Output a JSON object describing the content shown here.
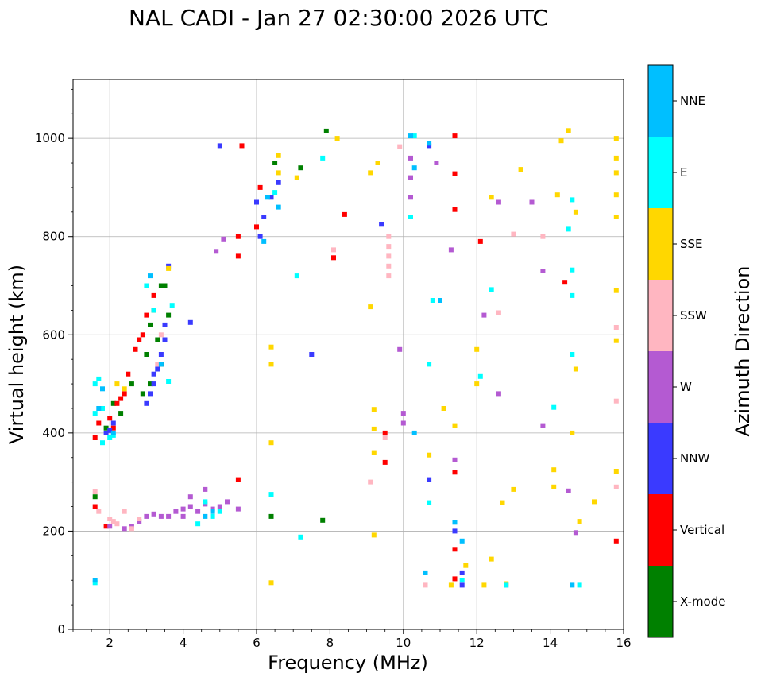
{
  "chart_data": {
    "type": "scatter",
    "title": "NAL CADI - Jan 27 02:30:00 2026 UTC",
    "xlabel": "Frequency (MHz)",
    "ylabel": "Virtual height (km)",
    "xlim": [
      1,
      16
    ],
    "ylim": [
      0,
      1120
    ],
    "xticks": [
      2,
      4,
      6,
      8,
      10,
      12,
      14,
      16
    ],
    "yticks": [
      0,
      200,
      400,
      600,
      800,
      1000
    ],
    "grid": true,
    "colorbar": {
      "label": "Azimuth Direction",
      "categories": [
        "X-mode",
        "Vertical",
        "NNW",
        "W",
        "SSW",
        "SSE",
        "E",
        "NNE"
      ],
      "colors": [
        "#008000",
        "#ff0000",
        "#3a3aff",
        "#b45ad2",
        "#ffb6c1",
        "#ffd700",
        "#00ffff",
        "#00bfff"
      ]
    },
    "series": [
      {
        "name": "X-mode",
        "points": [
          [
            1.6,
            270
          ],
          [
            1.9,
            410
          ],
          [
            2.3,
            440
          ],
          [
            2.6,
            500
          ],
          [
            2.9,
            480
          ],
          [
            3.0,
            560
          ],
          [
            3.1,
            620
          ],
          [
            3.2,
            650
          ],
          [
            3.3,
            590
          ],
          [
            3.4,
            700
          ],
          [
            3.5,
            700
          ],
          [
            3.4,
            540
          ],
          [
            3.1,
            500
          ],
          [
            6.5,
            950
          ],
          [
            7.2,
            940
          ],
          [
            7.9,
            1015
          ],
          [
            7.8,
            222
          ],
          [
            6.4,
            230
          ],
          [
            3.6,
            640
          ],
          [
            2.1,
            460
          ]
        ]
      },
      {
        "name": "Vertical",
        "points": [
          [
            1.6,
            250
          ],
          [
            1.6,
            390
          ],
          [
            1.7,
            420
          ],
          [
            1.8,
            450
          ],
          [
            2.0,
            430
          ],
          [
            2.1,
            410
          ],
          [
            2.2,
            460
          ],
          [
            2.3,
            470
          ],
          [
            2.4,
            480
          ],
          [
            2.5,
            520
          ],
          [
            2.7,
            570
          ],
          [
            2.8,
            590
          ],
          [
            2.9,
            600
          ],
          [
            3.0,
            640
          ],
          [
            3.2,
            680
          ],
          [
            1.9,
            210
          ],
          [
            5.5,
            305
          ],
          [
            5.5,
            760
          ],
          [
            5.5,
            800
          ],
          [
            5.6,
            985
          ],
          [
            8.1,
            757
          ],
          [
            8.4,
            845
          ],
          [
            9.5,
            340
          ],
          [
            9.5,
            400
          ],
          [
            11.4,
            163
          ],
          [
            11.4,
            1005
          ],
          [
            11.4,
            928
          ],
          [
            11.4,
            855
          ],
          [
            11.4,
            320
          ],
          [
            11.4,
            103
          ],
          [
            12.1,
            790
          ],
          [
            14.4,
            707
          ],
          [
            15.8,
            180
          ],
          [
            6.0,
            820
          ],
          [
            6.1,
            900
          ]
        ]
      },
      {
        "name": "NNW",
        "points": [
          [
            1.9,
            400
          ],
          [
            2.0,
            405
          ],
          [
            2.1,
            420
          ],
          [
            3.0,
            460
          ],
          [
            3.1,
            480
          ],
          [
            3.2,
            500
          ],
          [
            3.3,
            530
          ],
          [
            3.4,
            560
          ],
          [
            3.5,
            590
          ],
          [
            3.5,
            620
          ],
          [
            3.6,
            740
          ],
          [
            4.2,
            625
          ],
          [
            5.0,
            985
          ],
          [
            6.0,
            870
          ],
          [
            6.1,
            800
          ],
          [
            6.2,
            840
          ],
          [
            6.4,
            880
          ],
          [
            6.6,
            910
          ],
          [
            7.5,
            560
          ],
          [
            9.4,
            825
          ],
          [
            10.7,
            305
          ],
          [
            10.7,
            985
          ],
          [
            11.6,
            90
          ],
          [
            11.6,
            115
          ],
          [
            11.4,
            200
          ],
          [
            3.2,
            520
          ]
        ]
      },
      {
        "name": "W",
        "points": [
          [
            2.0,
            210
          ],
          [
            2.4,
            205
          ],
          [
            2.6,
            210
          ],
          [
            2.8,
            220
          ],
          [
            3.0,
            230
          ],
          [
            3.2,
            235
          ],
          [
            3.4,
            230
          ],
          [
            3.6,
            230
          ],
          [
            3.8,
            240
          ],
          [
            4.0,
            245
          ],
          [
            4.2,
            250
          ],
          [
            4.4,
            240
          ],
          [
            4.6,
            255
          ],
          [
            4.8,
            245
          ],
          [
            5.0,
            250
          ],
          [
            5.2,
            260
          ],
          [
            5.5,
            245
          ],
          [
            4.0,
            230
          ],
          [
            4.2,
            270
          ],
          [
            4.6,
            285
          ],
          [
            4.9,
            770
          ],
          [
            5.1,
            795
          ],
          [
            10.0,
            420
          ],
          [
            10.0,
            440
          ],
          [
            9.9,
            570
          ],
          [
            10.2,
            960
          ],
          [
            10.2,
            920
          ],
          [
            10.2,
            880
          ],
          [
            10.9,
            950
          ],
          [
            11.3,
            773
          ],
          [
            11.4,
            345
          ],
          [
            12.2,
            640
          ],
          [
            12.6,
            480
          ],
          [
            12.6,
            870
          ],
          [
            13.5,
            870
          ],
          [
            13.8,
            415
          ],
          [
            13.8,
            730
          ],
          [
            14.5,
            282
          ],
          [
            14.7,
            197
          ],
          [
            12.8,
            90
          ]
        ]
      },
      {
        "name": "SSW",
        "points": [
          [
            1.6,
            280
          ],
          [
            1.7,
            240
          ],
          [
            2.0,
            225
          ],
          [
            2.1,
            220
          ],
          [
            2.2,
            215
          ],
          [
            2.4,
            240
          ],
          [
            2.6,
            205
          ],
          [
            2.8,
            225
          ],
          [
            3.3,
            540
          ],
          [
            3.4,
            600
          ],
          [
            9.6,
            800
          ],
          [
            9.6,
            780
          ],
          [
            9.6,
            760
          ],
          [
            9.6,
            740
          ],
          [
            9.6,
            720
          ],
          [
            9.5,
            390
          ],
          [
            9.1,
            300
          ],
          [
            9.9,
            983
          ],
          [
            10.6,
            90
          ],
          [
            12.6,
            645
          ],
          [
            13.0,
            805
          ],
          [
            13.8,
            800
          ],
          [
            15.8,
            615
          ],
          [
            15.8,
            465
          ],
          [
            15.8,
            290
          ],
          [
            8.1,
            773
          ]
        ]
      },
      {
        "name": "SSE",
        "points": [
          [
            2.4,
            490
          ],
          [
            2.2,
            500
          ],
          [
            3.6,
            735
          ],
          [
            6.4,
            95
          ],
          [
            6.4,
            380
          ],
          [
            6.4,
            540
          ],
          [
            6.4,
            575
          ],
          [
            6.6,
            930
          ],
          [
            6.6,
            965
          ],
          [
            7.1,
            920
          ],
          [
            9.2,
            448
          ],
          [
            9.2,
            408
          ],
          [
            9.2,
            360
          ],
          [
            9.2,
            192
          ],
          [
            9.1,
            657
          ],
          [
            9.1,
            930
          ],
          [
            9.3,
            950
          ],
          [
            10.7,
            355
          ],
          [
            11.1,
            450
          ],
          [
            11.3,
            90
          ],
          [
            11.4,
            415
          ],
          [
            11.7,
            130
          ],
          [
            12.0,
            500
          ],
          [
            12.0,
            570
          ],
          [
            12.2,
            90
          ],
          [
            12.4,
            880
          ],
          [
            12.4,
            143
          ],
          [
            12.7,
            258
          ],
          [
            12.8,
            93
          ],
          [
            13.0,
            285
          ],
          [
            13.2,
            937
          ],
          [
            14.1,
            290
          ],
          [
            14.1,
            325
          ],
          [
            14.2,
            885
          ],
          [
            14.3,
            995
          ],
          [
            14.5,
            1016
          ],
          [
            14.6,
            400
          ],
          [
            14.7,
            850
          ],
          [
            14.7,
            530
          ],
          [
            14.8,
            220
          ],
          [
            15.2,
            260
          ],
          [
            15.8,
            322
          ],
          [
            15.8,
            588
          ],
          [
            15.8,
            690
          ],
          [
            15.8,
            840
          ],
          [
            15.8,
            885
          ],
          [
            15.8,
            930
          ],
          [
            15.8,
            960
          ],
          [
            15.8,
            1000
          ],
          [
            8.2,
            1000
          ]
        ]
      },
      {
        "name": "E",
        "points": [
          [
            1.6,
            95
          ],
          [
            1.6,
            440
          ],
          [
            1.6,
            500
          ],
          [
            1.7,
            510
          ],
          [
            1.8,
            380
          ],
          [
            1.8,
            450
          ],
          [
            2.0,
            390
          ],
          [
            2.1,
            395
          ],
          [
            3.0,
            700
          ],
          [
            3.2,
            650
          ],
          [
            3.6,
            505
          ],
          [
            3.7,
            660
          ],
          [
            4.4,
            215
          ],
          [
            4.6,
            260
          ],
          [
            4.8,
            230
          ],
          [
            5.0,
            240
          ],
          [
            6.4,
            275
          ],
          [
            6.5,
            890
          ],
          [
            7.1,
            720
          ],
          [
            7.2,
            188
          ],
          [
            7.8,
            960
          ],
          [
            10.2,
            840
          ],
          [
            10.3,
            1005
          ],
          [
            10.7,
            540
          ],
          [
            10.7,
            258
          ],
          [
            10.8,
            670
          ],
          [
            11.6,
            100
          ],
          [
            12.1,
            515
          ],
          [
            12.4,
            692
          ],
          [
            14.1,
            452
          ],
          [
            14.6,
            680
          ],
          [
            14.6,
            875
          ],
          [
            14.6,
            732
          ],
          [
            14.6,
            560
          ],
          [
            14.8,
            90
          ],
          [
            14.5,
            815
          ],
          [
            12.8,
            90
          ]
        ]
      },
      {
        "name": "NNE",
        "points": [
          [
            1.6,
            100
          ],
          [
            1.7,
            450
          ],
          [
            1.8,
            490
          ],
          [
            2.1,
            400
          ],
          [
            3.1,
            720
          ],
          [
            3.4,
            540
          ],
          [
            4.6,
            230
          ],
          [
            4.8,
            240
          ],
          [
            6.3,
            880
          ],
          [
            6.6,
            860
          ],
          [
            10.2,
            1005
          ],
          [
            10.3,
            940
          ],
          [
            10.3,
            400
          ],
          [
            10.6,
            115
          ],
          [
            10.7,
            990
          ],
          [
            11.0,
            670
          ],
          [
            11.6,
            180
          ],
          [
            11.4,
            218
          ],
          [
            14.6,
            90
          ],
          [
            6.2,
            790
          ]
        ]
      }
    ]
  }
}
